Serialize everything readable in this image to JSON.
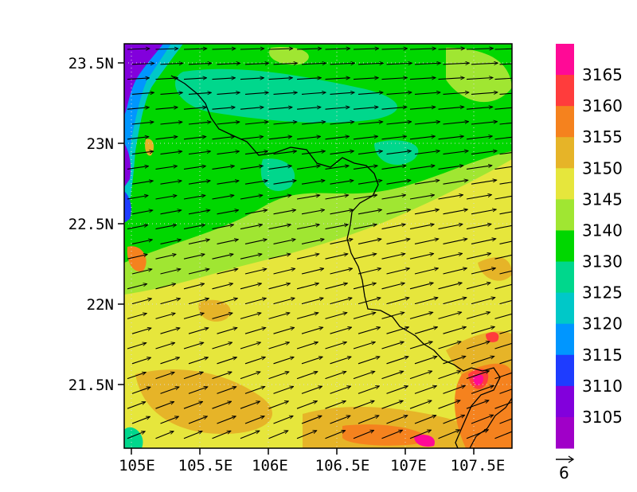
{
  "map": {
    "lat_labels": [
      "23.5N",
      "23N",
      "22.5N",
      "22N",
      "21.5N"
    ],
    "lon_labels": [
      "105E",
      "105.5E",
      "106E",
      "106.5E",
      "107E",
      "107.5E"
    ],
    "lat_range": [
      21.1,
      23.65
    ],
    "lon_range": [
      104.95,
      107.78
    ],
    "grid": "dotted"
  },
  "colorbar": {
    "levels": [
      "3165",
      "3160",
      "3155",
      "3150",
      "3145",
      "3140",
      "3130",
      "3125",
      "3120",
      "3115",
      "3110",
      "3105"
    ],
    "colors": [
      "#ff0a96",
      "#ff3c3c",
      "#f5821e",
      "#e6b428",
      "#e6e63c",
      "#a0e632",
      "#00d700",
      "#00d78c",
      "#00c8c8",
      "#0096ff",
      "#1e3cff",
      "#8200dc",
      "#a000c8"
    ]
  },
  "vector_reference": {
    "label": "6"
  }
}
